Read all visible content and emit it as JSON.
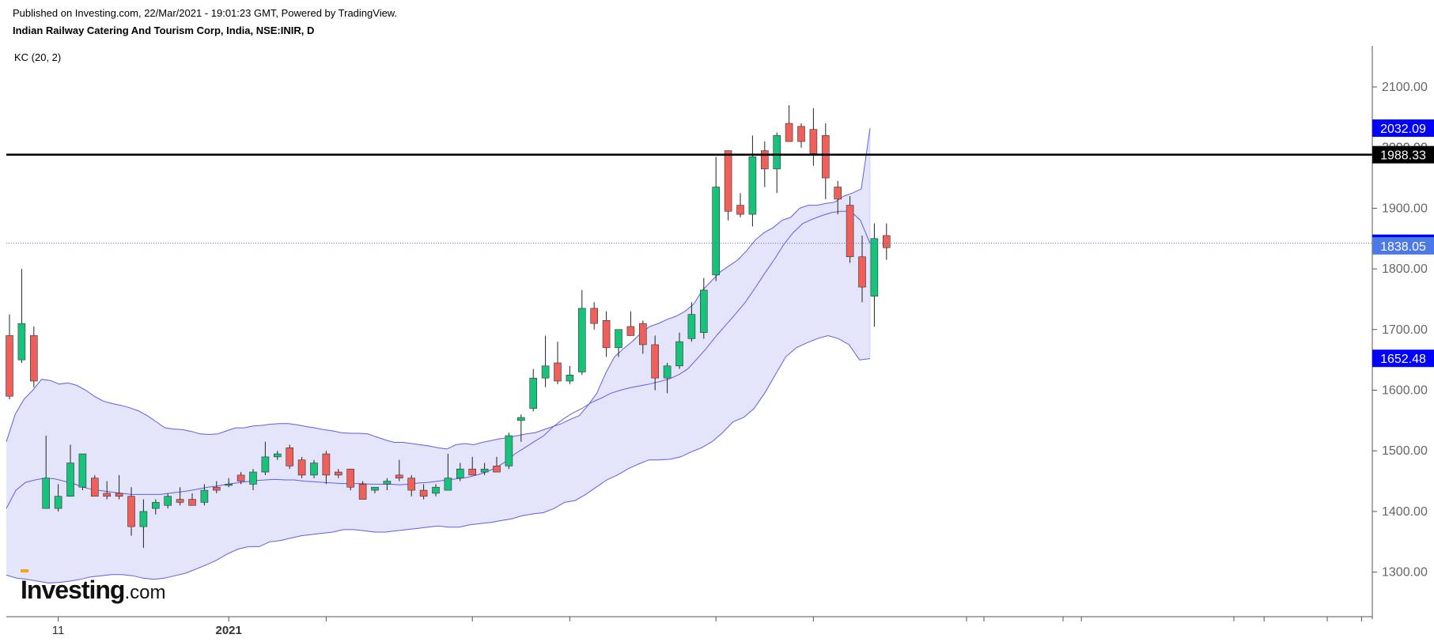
{
  "header": {
    "published": "Published on Investing.com, 22/Mar/2021 - 19:01:23 GMT, Powered by TradingView.",
    "symbol": "Indian Railway Catering And Tourism Corp, India, NSE:INIR, D",
    "indicator": "KC (20, 2)"
  },
  "logo": {
    "brand": "Investing",
    "suffix": ".com",
    "accent": "#f7a21b"
  },
  "colors": {
    "up": "#17c37b",
    "down": "#f0605a",
    "wick": "#222222",
    "band_fill": "#e4e4fb",
    "band_line": "#5f5fe6",
    "hline": "#000000",
    "price_line": "#4f6bd6",
    "label_blue": "#0000ff",
    "label_black": "#000000",
    "label_light": "#4d79e6"
  },
  "chart_data": {
    "type": "candlestick",
    "title": "Indian Railway Catering And Tourism Corp, India, NSE:INIR, D",
    "ylim": [
      1232,
      2168
    ],
    "y_ticks": [
      1300,
      1400,
      1500,
      1600,
      1700,
      1800,
      1900,
      2000,
      2100
    ],
    "y_tick_labels": [
      "1300.00",
      "1400.00",
      "1500.00",
      "1600.00",
      "1700.00",
      "1800.00",
      "1900.00",
      "2000.00",
      "2100.00"
    ],
    "x_tick_labels": [
      {
        "label": "11",
        "index": 4,
        "bold": false
      },
      {
        "label": "2021",
        "index": 18,
        "bold": true
      },
      {
        "index": 26
      },
      {
        "index": 38
      },
      {
        "index": 46
      },
      {
        "index": 58
      },
      {
        "index": 66
      },
      {
        "index": 80
      },
      {
        "index": 88
      },
      {
        "index": 103
      },
      {
        "index": 111
      }
    ],
    "grid": false,
    "candles": [
      [
        1690,
        1725,
        1585,
        1590
      ],
      [
        1650,
        1800,
        1645,
        1710
      ],
      [
        1690,
        1705,
        1605,
        1615
      ],
      [
        1405,
        1525,
        1405,
        1455
      ],
      [
        1405,
        1445,
        1400,
        1425
      ],
      [
        1425,
        1510,
        1425,
        1480
      ],
      [
        1440,
        1495,
        1435,
        1495
      ],
      [
        1455,
        1460,
        1425,
        1425
      ],
      [
        1430,
        1450,
        1420,
        1425
      ],
      [
        1430,
        1460,
        1420,
        1425
      ],
      [
        1425,
        1440,
        1360,
        1375
      ],
      [
        1375,
        1420,
        1340,
        1400
      ],
      [
        1405,
        1420,
        1395,
        1415
      ],
      [
        1410,
        1430,
        1405,
        1425
      ],
      [
        1420,
        1440,
        1410,
        1415
      ],
      [
        1420,
        1430,
        1410,
        1410
      ],
      [
        1415,
        1445,
        1410,
        1435
      ],
      [
        1440,
        1450,
        1430,
        1435
      ],
      [
        1445,
        1455,
        1440,
        1445
      ],
      [
        1460,
        1465,
        1445,
        1450
      ],
      [
        1445,
        1470,
        1435,
        1465
      ],
      [
        1465,
        1515,
        1460,
        1490
      ],
      [
        1490,
        1500,
        1485,
        1495
      ],
      [
        1505,
        1510,
        1470,
        1475
      ],
      [
        1485,
        1490,
        1455,
        1460
      ],
      [
        1460,
        1485,
        1455,
        1480
      ],
      [
        1495,
        1500,
        1445,
        1460
      ],
      [
        1465,
        1470,
        1455,
        1460
      ],
      [
        1470,
        1470,
        1435,
        1440
      ],
      [
        1445,
        1450,
        1420,
        1420
      ],
      [
        1435,
        1440,
        1430,
        1440
      ],
      [
        1445,
        1455,
        1435,
        1450
      ],
      [
        1460,
        1485,
        1450,
        1455
      ],
      [
        1455,
        1460,
        1425,
        1435
      ],
      [
        1435,
        1445,
        1420,
        1425
      ],
      [
        1430,
        1445,
        1425,
        1440
      ],
      [
        1435,
        1495,
        1435,
        1455
      ],
      [
        1455,
        1480,
        1450,
        1470
      ],
      [
        1470,
        1490,
        1460,
        1460
      ],
      [
        1465,
        1480,
        1460,
        1470
      ],
      [
        1475,
        1490,
        1465,
        1465
      ],
      [
        1475,
        1530,
        1470,
        1525
      ],
      [
        1550,
        1560,
        1515,
        1555
      ],
      [
        1570,
        1635,
        1565,
        1620
      ],
      [
        1620,
        1690,
        1605,
        1640
      ],
      [
        1645,
        1680,
        1610,
        1615
      ],
      [
        1615,
        1640,
        1610,
        1625
      ],
      [
        1630,
        1765,
        1625,
        1735
      ],
      [
        1735,
        1745,
        1700,
        1710
      ],
      [
        1715,
        1730,
        1655,
        1670
      ],
      [
        1670,
        1700,
        1655,
        1700
      ],
      [
        1705,
        1730,
        1690,
        1690
      ],
      [
        1710,
        1715,
        1660,
        1675
      ],
      [
        1675,
        1690,
        1600,
        1620
      ],
      [
        1620,
        1645,
        1595,
        1640
      ],
      [
        1640,
        1695,
        1635,
        1680
      ],
      [
        1685,
        1745,
        1680,
        1725
      ],
      [
        1695,
        1785,
        1685,
        1765
      ],
      [
        1790,
        1985,
        1780,
        1935
      ],
      [
        1995,
        1995,
        1880,
        1895
      ],
      [
        1905,
        1925,
        1885,
        1890
      ],
      [
        1890,
        2020,
        1870,
        1985
      ],
      [
        1995,
        2010,
        1935,
        1965
      ],
      [
        1965,
        2025,
        1925,
        2020
      ],
      [
        2040,
        2070,
        2010,
        2010
      ],
      [
        2035,
        2040,
        2000,
        2010
      ],
      [
        2030,
        2065,
        1970,
        1990
      ],
      [
        2020,
        2040,
        1915,
        1950
      ],
      [
        1935,
        1945,
        1890,
        1915
      ],
      [
        1905,
        1920,
        1810,
        1820
      ],
      [
        1820,
        1855,
        1745,
        1770
      ],
      [
        1755,
        1875,
        1705,
        1850
      ],
      [
        1855,
        1875,
        1815,
        1835
      ]
    ],
    "kc_upper": [
      1515,
      1560,
      1585,
      1600,
      1618,
      1616,
      1610,
      1612,
      1608,
      1600,
      1590,
      1582,
      1578,
      1575,
      1571,
      1566,
      1558,
      1548,
      1538,
      1536,
      1535,
      1532,
      1528,
      1527,
      1528,
      1533,
      1538,
      1538,
      1541,
      1542,
      1544,
      1545,
      1545,
      1543,
      1540,
      1538,
      1535,
      1533,
      1530,
      1529,
      1529,
      1528,
      1523,
      1518,
      1514,
      1514,
      1512,
      1510,
      1508,
      1505,
      1503,
      1510,
      1512,
      1510,
      1514,
      1517,
      1520,
      1522,
      1525,
      1528,
      1530,
      1535,
      1540,
      1545,
      1552,
      1558,
      1575,
      1595,
      1628,
      1655,
      1668,
      1680,
      1694,
      1705,
      1710,
      1717,
      1722,
      1730,
      1742,
      1765,
      1780,
      1795,
      1805,
      1815,
      1830,
      1848,
      1860,
      1868,
      1880,
      1885,
      1900,
      1905,
      1905,
      1908,
      1910,
      1920,
      1925,
      1932,
      2032
    ],
    "kc_mid": [
      1405,
      1435,
      1448,
      1452,
      1455,
      1454,
      1450,
      1446,
      1440,
      1436,
      1434,
      1432,
      1430,
      1428,
      1428,
      1428,
      1428,
      1430,
      1432,
      1434,
      1437,
      1440,
      1442,
      1445,
      1447,
      1449,
      1451,
      1452,
      1453,
      1452,
      1452,
      1450,
      1449,
      1448,
      1447,
      1446,
      1446,
      1446,
      1445,
      1445,
      1445,
      1444,
      1445,
      1447,
      1448,
      1450,
      1452,
      1454,
      1456,
      1460,
      1465,
      1472,
      1482,
      1495,
      1505,
      1515,
      1525,
      1540,
      1552,
      1562,
      1570,
      1580,
      1587,
      1595,
      1600,
      1604,
      1607,
      1610,
      1614,
      1618,
      1625,
      1635,
      1652,
      1670,
      1690,
      1708,
      1726,
      1745,
      1768,
      1792,
      1815,
      1840,
      1860,
      1875,
      1882,
      1888,
      1893,
      1895,
      1895,
      1880,
      1842
    ],
    "kc_lower": [
      1295,
      1290,
      1288,
      1285,
      1282,
      1283,
      1285,
      1288,
      1292,
      1294,
      1296,
      1296,
      1294,
      1290,
      1288,
      1290,
      1294,
      1298,
      1305,
      1312,
      1320,
      1330,
      1338,
      1342,
      1342,
      1350,
      1352,
      1356,
      1360,
      1362,
      1364,
      1366,
      1370,
      1370,
      1368,
      1366,
      1366,
      1368,
      1370,
      1372,
      1374,
      1376,
      1374,
      1374,
      1378,
      1380,
      1382,
      1385,
      1388,
      1393,
      1396,
      1398,
      1405,
      1415,
      1418,
      1428,
      1440,
      1452,
      1460,
      1470,
      1478,
      1485,
      1485,
      1486,
      1490,
      1498,
      1505,
      1515,
      1530,
      1548,
      1555,
      1570,
      1595,
      1625,
      1655,
      1670,
      1678,
      1685,
      1690,
      1685,
      1675,
      1650,
      1652
    ],
    "horizontal_line": 1988.33,
    "last_price": 1842.28,
    "price_labels": [
      {
        "text": "2032.09",
        "value": 2032.09,
        "style": "blue"
      },
      {
        "text": "2000.00",
        "value": 2000,
        "style": "tick-hidden"
      },
      {
        "text": "1988.33",
        "value": 1988.33,
        "style": "black"
      },
      {
        "text": "1842.28",
        "value": 1842.28,
        "style": "blue"
      },
      {
        "text": "1838.05",
        "value": 1838.05,
        "style": "light"
      },
      {
        "text": "1652.48",
        "value": 1652.48,
        "style": "blue"
      }
    ]
  }
}
